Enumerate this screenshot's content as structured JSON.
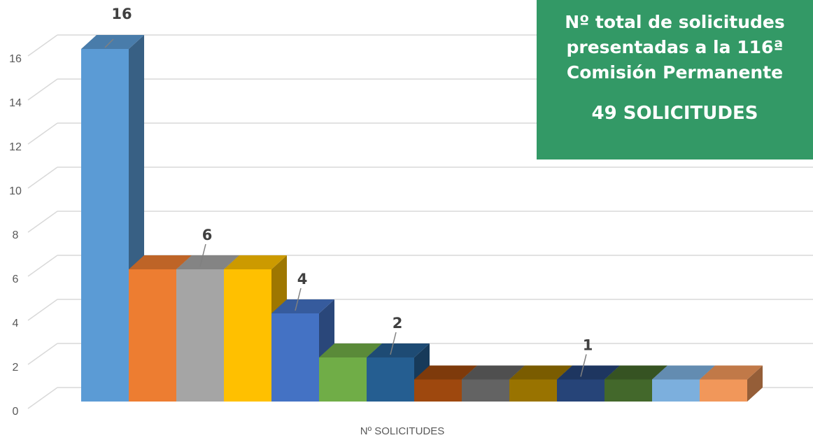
{
  "info_box": {
    "title_lines": [
      "Nº total de solicitudes",
      "presentadas a la 116ª",
      "Comisión Permanente"
    ],
    "total": "49 SOLICITUDES",
    "background": "#339966"
  },
  "chart_data": {
    "type": "bar",
    "style": "3d-clustered-column",
    "title": "",
    "xlabel": "Nº SOLICITUDES",
    "ylabel": "",
    "ylim": [
      0,
      16
    ],
    "yticks": [
      0,
      2,
      4,
      6,
      8,
      10,
      12,
      14,
      16
    ],
    "grid": true,
    "categories": [
      "Nº SOLICITUDES"
    ],
    "series": [
      {
        "value": 16,
        "color": "#5B9BD5"
      },
      {
        "value": 6,
        "color": "#ED7D31"
      },
      {
        "value": 6,
        "color": "#A5A5A5"
      },
      {
        "value": 6,
        "color": "#FFC000"
      },
      {
        "value": 4,
        "color": "#4472C4"
      },
      {
        "value": 2,
        "color": "#70AD47"
      },
      {
        "value": 2,
        "color": "#255E91"
      },
      {
        "value": 1,
        "color": "#9E480E"
      },
      {
        "value": 1,
        "color": "#636363"
      },
      {
        "value": 1,
        "color": "#997300"
      },
      {
        "value": 1,
        "color": "#264478"
      },
      {
        "value": 1,
        "color": "#43682B"
      },
      {
        "value": 1,
        "color": "#7CAFDD"
      },
      {
        "value": 1,
        "color": "#F1975A"
      }
    ],
    "data_labels": [
      {
        "text": "16",
        "series_index": 0
      },
      {
        "text": "6",
        "series_index": 2
      },
      {
        "text": "4",
        "series_index": 4
      },
      {
        "text": "2",
        "series_index": 6
      },
      {
        "text": "1",
        "series_index": 10
      }
    ]
  }
}
